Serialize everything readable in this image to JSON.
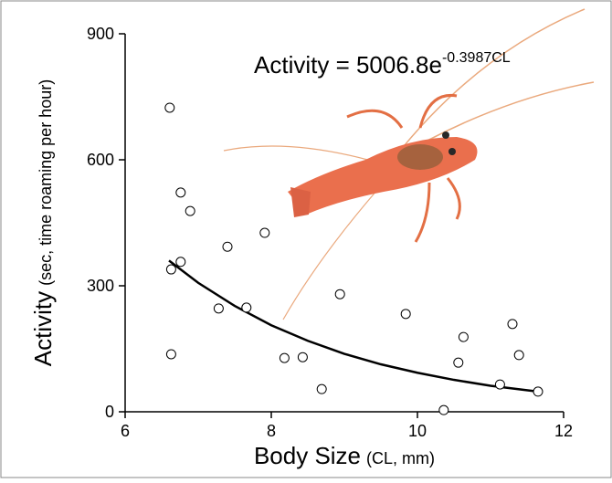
{
  "chart_data": {
    "type": "scatter",
    "equation": {
      "text": "Activity = 5006.8e",
      "exponent": "-0.3987CL"
    },
    "x_label": {
      "main": "Body Size",
      "unit": "(CL, mm)"
    },
    "y_label": {
      "main": "Activity",
      "unit": "(sec, time roaming per hour)"
    },
    "xlim": [
      6,
      12
    ],
    "xticks": [
      6,
      8,
      10,
      12
    ],
    "ylim": [
      0,
      900
    ],
    "yticks": [
      0,
      300,
      600,
      900
    ],
    "series": [
      {
        "color": "#ffffff",
        "x": [
          6.61,
          6.76,
          6.89,
          7.4,
          7.91,
          6.63,
          6.76,
          7.28,
          7.66,
          8.94,
          9.84,
          6.63,
          8.18,
          8.43,
          8.69,
          10.63,
          10.56,
          11.3,
          11.39,
          11.13,
          11.65,
          10.36
        ],
        "values": [
          724,
          522,
          478,
          393,
          426,
          339,
          357,
          246,
          248,
          280,
          233,
          137,
          128,
          130,
          54,
          178,
          117,
          209,
          135,
          65,
          48,
          4
        ]
      }
    ],
    "curve": {
      "color": "#000000",
      "x": [
        6.6,
        7,
        7.5,
        8,
        8.5,
        9,
        9.5,
        10,
        10.5,
        11,
        11.7
      ],
      "values": [
        360,
        307,
        252,
        206,
        169,
        138,
        113,
        93,
        76,
        62,
        47
      ]
    }
  }
}
